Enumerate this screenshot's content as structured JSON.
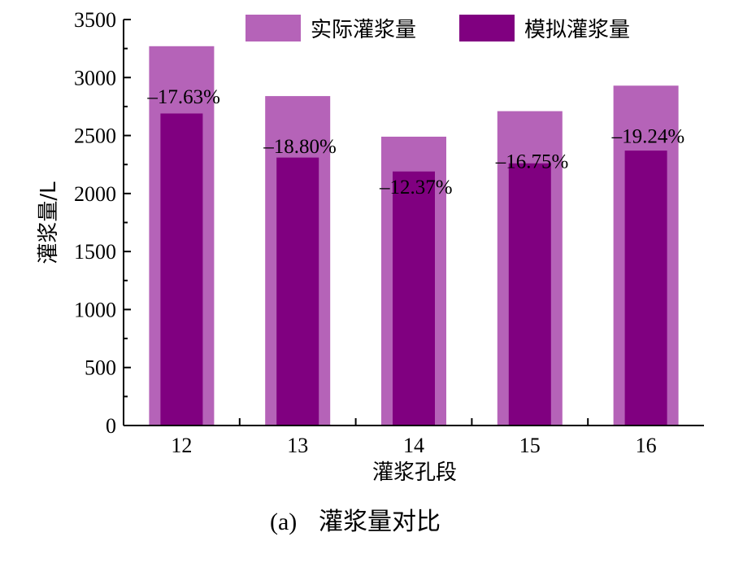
{
  "chart_data": {
    "type": "bar",
    "categories": [
      "12",
      "13",
      "14",
      "15",
      "16"
    ],
    "series": [
      {
        "name": "实际灌浆量",
        "values": [
          3270,
          2840,
          2490,
          2710,
          2930
        ],
        "color": "#B563B8"
      },
      {
        "name": "模拟灌浆量",
        "values": [
          2690,
          2310,
          2190,
          2260,
          2370
        ],
        "color": "#800080"
      }
    ],
    "data_labels": [
      "–17.63%",
      "–18.80%",
      "–12.37%",
      "–16.75%",
      "–19.24%"
    ],
    "xlabel": "灌浆孔段",
    "ylabel": "灌浆量/L",
    "ylim": [
      0,
      3500
    ],
    "yticks": [
      "0",
      "500",
      "1000",
      "1500",
      "2000",
      "2500",
      "3000",
      "3500"
    ],
    "grid": false,
    "legend_position": "top-right"
  },
  "caption": {
    "prefix": "(a)",
    "text": "灌浆量对比"
  }
}
